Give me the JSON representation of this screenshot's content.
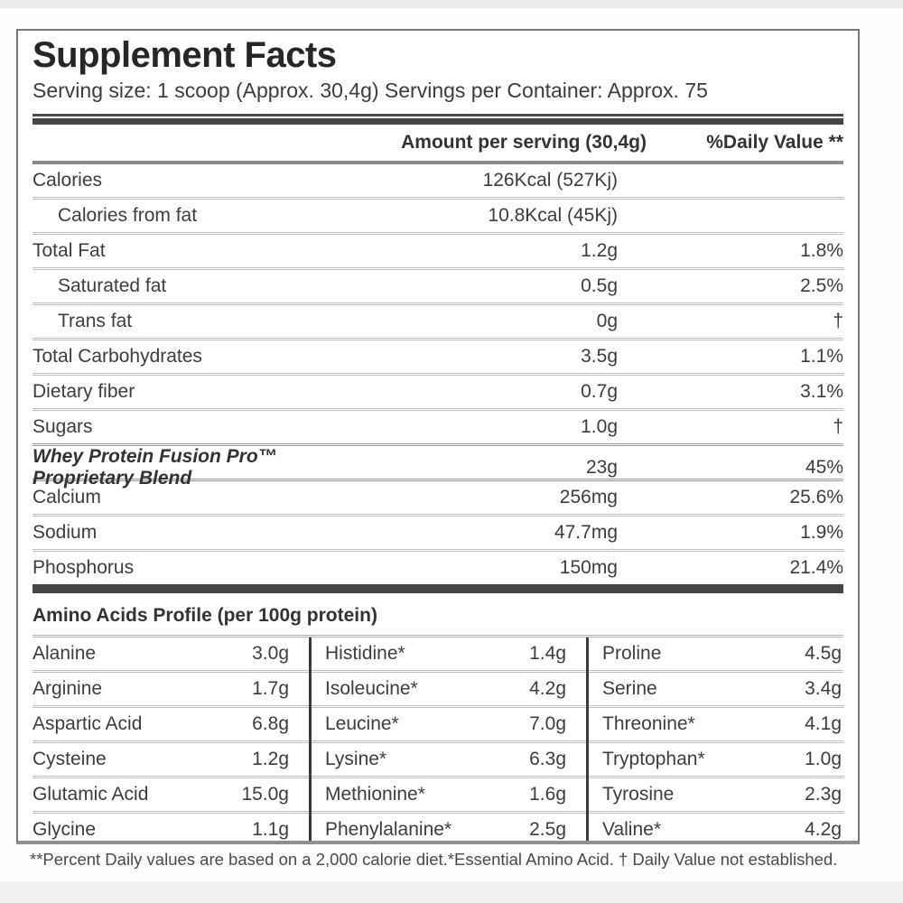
{
  "label": {
    "title": "Supplement Facts",
    "serving_line": "Serving size: 1 scoop (Approx. 30,4g) Servings per Container: Approx. 75",
    "columns": {
      "amount": "Amount per serving (30,4g)",
      "daily_value": "%Daily Value **"
    },
    "rows": [
      {
        "name": "Calories",
        "amount": "126Kcal (527Kj)",
        "dv": ""
      },
      {
        "name": "Calories from fat",
        "amount": "10.8Kcal (45Kj)",
        "dv": ""
      },
      {
        "name": "Total Fat",
        "amount": "1.2g",
        "dv": "1.8%"
      },
      {
        "name": "Saturated fat",
        "amount": "0.5g",
        "dv": "2.5%"
      },
      {
        "name": "Trans fat",
        "amount": "0g",
        "dv": "†"
      },
      {
        "name": "Total Carbohydrates",
        "amount": "3.5g",
        "dv": "1.1%"
      },
      {
        "name": "Dietary fiber",
        "amount": "0.7g",
        "dv": "3.1%"
      },
      {
        "name": "Sugars",
        "amount": "1.0g",
        "dv": "†"
      },
      {
        "name": "Whey Protein Fusion Pro™ Proprietary Blend",
        "amount": "23g",
        "dv": "45%"
      },
      {
        "name": "Calcium",
        "amount": "256mg",
        "dv": "25.6%"
      },
      {
        "name": "Sodium",
        "amount": "47.7mg",
        "dv": "1.9%"
      },
      {
        "name": "Phosphorus",
        "amount": "150mg",
        "dv": "21.4%"
      }
    ],
    "amino": {
      "title": "Amino Acids Profile (per 100g protein)",
      "grid": [
        [
          {
            "n": "Alanine",
            "v": "3.0g"
          },
          {
            "n": "Histidine*",
            "v": "1.4g"
          },
          {
            "n": "Proline",
            "v": "4.5g"
          }
        ],
        [
          {
            "n": "Arginine",
            "v": "1.7g"
          },
          {
            "n": "Isoleucine*",
            "v": "4.2g"
          },
          {
            "n": "Serine",
            "v": "3.4g"
          }
        ],
        [
          {
            "n": "Aspartic Acid",
            "v": "6.8g"
          },
          {
            "n": "Leucine*",
            "v": "7.0g"
          },
          {
            "n": "Threonine*",
            "v": "4.1g"
          }
        ],
        [
          {
            "n": "Cysteine",
            "v": "1.2g"
          },
          {
            "n": "Lysine*",
            "v": "6.3g"
          },
          {
            "n": "Tryptophan*",
            "v": "1.0g"
          }
        ],
        [
          {
            "n": "Glutamic Acid",
            "v": "15.0g"
          },
          {
            "n": "Methionine*",
            "v": "1.6g"
          },
          {
            "n": "Tyrosine",
            "v": "2.3g"
          }
        ],
        [
          {
            "n": "Glycine",
            "v": "1.1g"
          },
          {
            "n": "Phenylalanine*",
            "v": "2.5g"
          },
          {
            "n": "Valine*",
            "v": "4.2g"
          }
        ]
      ]
    },
    "footnote": "**Percent Daily values are based on a 2,000 calorie diet.*Essential Amino Acid. † Daily Value not established."
  },
  "colors": {
    "text": "#3d3d3d",
    "thick_bar": "#454545",
    "divider_light": "#c0c0c0",
    "panel_border": "#787878"
  }
}
